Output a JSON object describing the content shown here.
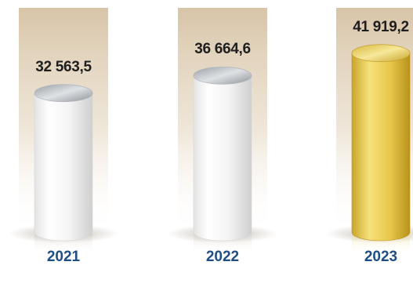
{
  "chart_data": {
    "type": "bar",
    "categories": [
      "2021",
      "2022",
      "2023"
    ],
    "values": [
      32563.5,
      36664.6,
      41919.2
    ],
    "value_labels": [
      "32 563,5",
      "36 664,6",
      "41 919,2"
    ],
    "title": "",
    "xlabel": "",
    "ylabel": "",
    "ylim": [
      0,
      45000
    ],
    "grid": false,
    "legend": "none",
    "colors": {
      "standard_bar": "#f2f2f2",
      "highlight_bar": "#e3c64a",
      "backdrop": "#d9c6aa",
      "year_label": "#1f4e86"
    },
    "highlight_index": 2
  }
}
